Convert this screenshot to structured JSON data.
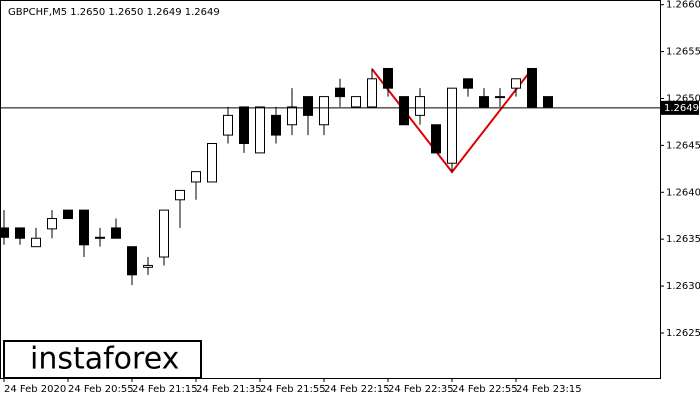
{
  "chart_data": {
    "type": "candlestick",
    "title": "GBPCHF,M5  1.2650 1.2650 1.2649 1.2649",
    "logo": "instaforex",
    "categories": [
      "24 Feb 2020",
      null,
      null,
      null,
      "24 Feb 20:55",
      null,
      null,
      null,
      "24 Feb 21:15",
      null,
      null,
      null,
      "24 Feb 21:35",
      null,
      null,
      null,
      "24 Feb 21:55",
      null,
      null,
      null,
      "24 Feb 22:15",
      null,
      null,
      null,
      "24 Feb 22:35",
      null,
      null,
      null,
      "24 Feb 22:55",
      null,
      null,
      null,
      "24 Feb 23:15",
      null,
      null
    ],
    "open": [
      1.26362,
      1.26362,
      1.26342,
      1.26361,
      1.26381,
      1.26381,
      1.26352,
      1.26362,
      1.26342,
      1.2632,
      1.26331,
      1.26392,
      1.26411,
      1.26411,
      1.26461,
      1.26491,
      1.26442,
      1.26482,
      1.26472,
      1.26502,
      1.26472,
      1.26511,
      1.26491,
      1.26491,
      1.26532,
      1.26502,
      1.26482,
      1.26472,
      1.26431,
      1.26521,
      1.26502,
      1.26502,
      1.26511,
      1.26532,
      1.26502
    ],
    "high": [
      1.26381,
      1.26362,
      1.26362,
      1.26381,
      1.26381,
      1.26381,
      1.26362,
      1.26372,
      1.26342,
      1.26331,
      1.26381,
      1.26402,
      1.26422,
      1.26452,
      1.26491,
      1.26491,
      1.26491,
      1.26491,
      1.26511,
      1.26502,
      1.26502,
      1.26521,
      1.26502,
      1.26532,
      1.26532,
      1.26502,
      1.26511,
      1.26472,
      1.26511,
      1.26521,
      1.26511,
      1.26511,
      1.26521,
      1.26532,
      1.26502
    ],
    "low": [
      1.26344,
      1.26344,
      1.26342,
      1.26351,
      1.26372,
      1.26331,
      1.26342,
      1.26351,
      1.26301,
      1.26312,
      1.26322,
      1.26362,
      1.26392,
      1.26411,
      1.26452,
      1.26442,
      1.26442,
      1.26452,
      1.26461,
      1.26461,
      1.26461,
      1.26491,
      1.26491,
      1.26491,
      1.26502,
      1.26472,
      1.26472,
      1.26442,
      1.26421,
      1.26502,
      1.26491,
      1.26491,
      1.26502,
      1.26491,
      1.26491
    ],
    "close": [
      1.26352,
      1.26351,
      1.26351,
      1.26372,
      1.26372,
      1.26344,
      1.26351,
      1.26351,
      1.26312,
      1.26322,
      1.26381,
      1.26402,
      1.26422,
      1.26452,
      1.26482,
      1.26452,
      1.26491,
      1.26461,
      1.26491,
      1.26482,
      1.26502,
      1.26502,
      1.26502,
      1.26521,
      1.26511,
      1.26472,
      1.26502,
      1.26442,
      1.26511,
      1.26511,
      1.26491,
      1.26502,
      1.26521,
      1.26491,
      1.26491
    ],
    "last": 1.2649,
    "ylim": [
      1.26202,
      1.26605
    ],
    "yticks": [
      1.2625,
      {
        "value": 1.263,
        "label": "1.2630"
      },
      1.2635,
      {
        "value": 1.264,
        "label": "1.2640"
      },
      1.2645,
      {
        "value": 1.265,
        "label": "1.2650"
      },
      1.2655,
      {
        "value": 1.266,
        "label": "1.2660"
      }
    ],
    "up_color": "#ffffff",
    "down_color": "#000000",
    "grid": false
  }
}
